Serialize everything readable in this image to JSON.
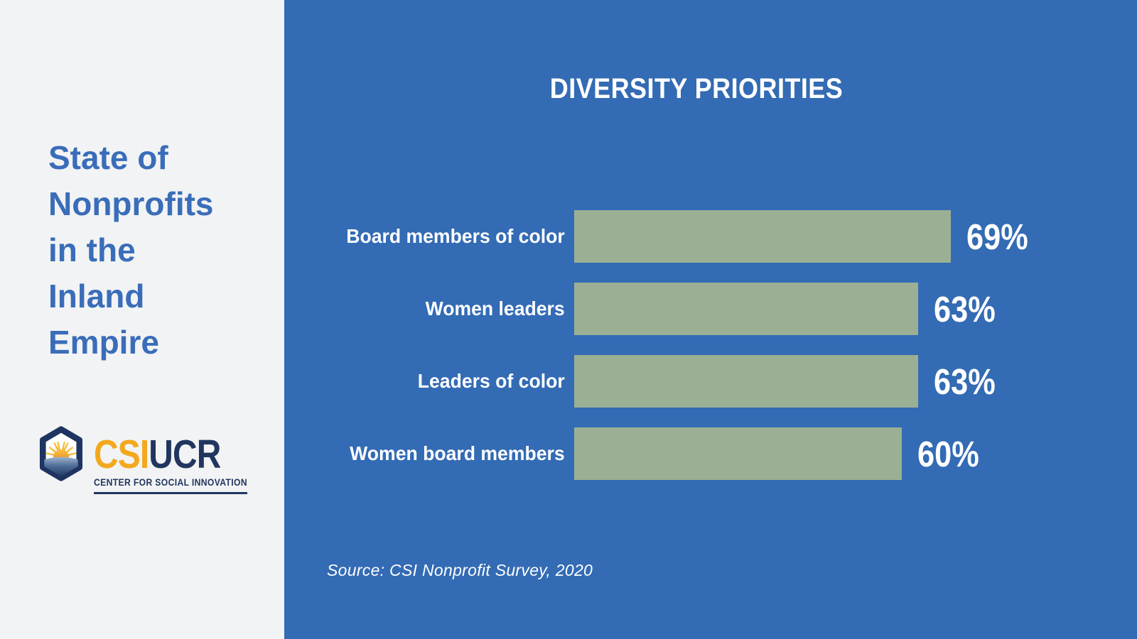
{
  "left_panel": {
    "title": "State of\nNonprofits\nin the\nInland\nEmpire",
    "logo": {
      "icon": "sunrise-hexagon-icon",
      "acronym_primary": "CSI",
      "acronym_secondary": "UCR",
      "tagline": "CENTER FOR SOCIAL INNOVATION",
      "colors": {
        "gold": "#F3A81D",
        "navy": "#21365F"
      }
    }
  },
  "chart_data": {
    "type": "bar",
    "orientation": "horizontal",
    "title": "DIVERSITY PRIORITIES",
    "categories": [
      "Board members of color",
      "Women leaders",
      "Leaders of color",
      "Women board members"
    ],
    "values": [
      69,
      63,
      63,
      60
    ],
    "value_labels": [
      "69%",
      "63%",
      "63%",
      "60%"
    ],
    "unit": "%",
    "xlim": [
      0,
      100
    ],
    "grid": false,
    "axes_visible": false,
    "legend": "none",
    "bar_color": "#9BAF94",
    "background_color": "#336BB4",
    "label_color": "#FFFFFF",
    "source_note": "Source: CSI Nonprofit Survey, 2020"
  },
  "colors": {
    "panel_background": "#F2F3F4",
    "chart_background": "#336BB4",
    "title_text": "#3A6DB9",
    "bar_fill": "#9BAF94"
  }
}
